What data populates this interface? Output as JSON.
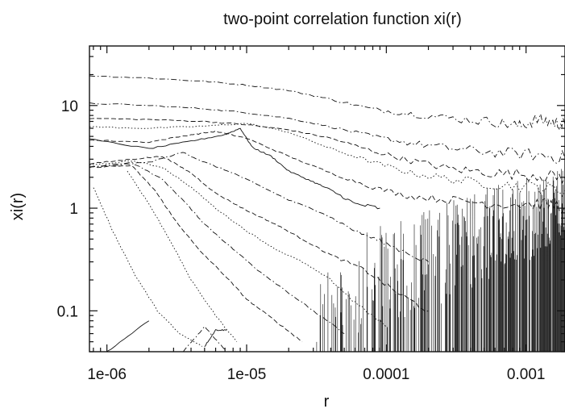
{
  "chart_data": {
    "type": "line",
    "title": "two-point correlation function xi(r)",
    "xlabel": "r",
    "ylabel": "xi(r)",
    "xscale": "log",
    "yscale": "log",
    "xlim": [
      7.5e-07,
      0.0019
    ],
    "ylim": [
      0.04,
      38
    ],
    "grid": false,
    "legend": "none",
    "x_ticks": [
      {
        "value": 1e-06,
        "label": "1e-06"
      },
      {
        "value": 1e-05,
        "label": "1e-05"
      },
      {
        "value": 0.0001,
        "label": "0.0001"
      },
      {
        "value": 0.001,
        "label": "0.001"
      }
    ],
    "y_ticks": [
      {
        "value": 0.1,
        "label": "0.1"
      },
      {
        "value": 1,
        "label": "1"
      },
      {
        "value": 10,
        "label": "10"
      }
    ],
    "series": [
      {
        "style": "dashdot",
        "color": "#111111",
        "x": [
          7.5e-07,
          2e-06,
          5e-06,
          1e-05,
          2e-05,
          4e-05,
          8e-05,
          0.00015,
          0.0003,
          0.0006,
          0.0009,
          0.0012,
          0.0016,
          0.0019
        ],
        "y": [
          19.5,
          18.5,
          17.2,
          15.8,
          14,
          11.5,
          9.2,
          8.3,
          7.5,
          6.9,
          6.3,
          7.3,
          6.8,
          6.5
        ]
      },
      {
        "style": "dashdot",
        "color": "#111111",
        "x": [
          7.5e-07,
          2e-06,
          5e-06,
          1e-05,
          2e-05,
          4e-05,
          8e-05,
          0.00015,
          0.0003,
          0.0006,
          0.0012,
          0.0019
        ],
        "y": [
          10.5,
          10,
          9.3,
          8.5,
          7.5,
          6.2,
          5,
          4.3,
          3.8,
          3.5,
          3.3,
          3.1
        ]
      },
      {
        "style": "dashed",
        "color": "#111111",
        "x": [
          7.5e-07,
          2e-06,
          5e-06,
          1e-05,
          2e-05,
          4e-05,
          8e-05,
          0.00015,
          0.0003,
          0.0006,
          0.0012,
          0.0019
        ],
        "y": [
          7.5,
          7.3,
          7,
          6.5,
          5.8,
          4.8,
          3.6,
          2.9,
          2.4,
          2.2,
          2.1,
          2
        ]
      },
      {
        "style": "dotted",
        "color": "#111111",
        "x": [
          7.5e-07,
          2e-06,
          5e-06,
          1e-05,
          2e-05,
          4e-05,
          8e-05,
          0.00015,
          0.0003,
          0.0006,
          0.0012,
          0.0019
        ],
        "y": [
          6.2,
          6,
          6.3,
          6.7,
          5.5,
          3.8,
          2.8,
          2.2,
          1.9,
          1.7,
          1.6,
          1.5
        ]
      },
      {
        "style": "dashed",
        "color": "#111111",
        "x": [
          7.5e-07,
          2e-06,
          4e-06,
          6e-06,
          1e-05,
          2e-05,
          4e-05,
          8e-05,
          0.00015,
          0.0003,
          0.0006,
          0.0012,
          0.0019
        ],
        "y": [
          4.6,
          4.4,
          5.2,
          5.6,
          4.8,
          3.2,
          2.2,
          1.6,
          1.3,
          1.2,
          1.1,
          1.1,
          1.05
        ]
      },
      {
        "style": "solid",
        "color": "#111111",
        "x": [
          7.5e-07,
          2e-06,
          4e-06,
          7e-06,
          9e-06,
          1.1e-05,
          1.5e-05,
          2e-05,
          3e-05,
          4e-05,
          6e-05,
          9e-05
        ],
        "y": [
          4.7,
          3.8,
          4.5,
          5.2,
          6,
          3.9,
          3.2,
          2.3,
          1.8,
          1.5,
          1.1,
          1
        ]
      },
      {
        "style": "dashdot",
        "color": "#111111",
        "x": [
          7.5e-07,
          2e-06,
          3.5e-06,
          5e-06,
          8e-06,
          1.3e-05,
          2e-05,
          3.5e-05,
          6e-05,
          0.0001,
          0.0002
        ],
        "y": [
          2.5,
          2.8,
          3.5,
          2.8,
          2.2,
          1.6,
          1.2,
          0.9,
          0.6,
          0.45,
          0.3
        ]
      },
      {
        "style": "dashed",
        "color": "#111111",
        "x": [
          7.5e-07,
          1.5e-06,
          2.5e-06,
          4e-06,
          6e-06,
          1e-05,
          1.6e-05,
          2.5e-05,
          4e-05,
          7e-05,
          0.00012,
          0.0002
        ],
        "y": [
          2.7,
          3,
          3.2,
          2.2,
          1.4,
          0.95,
          0.7,
          0.5,
          0.35,
          0.25,
          0.15,
          0.1
        ]
      },
      {
        "style": "dotted",
        "color": "#111111",
        "x": [
          7.5e-07,
          1.5e-06,
          2.5e-06,
          4e-06,
          6e-06,
          1e-05,
          1.6e-05,
          2.5e-05,
          4e-05,
          6e-05,
          0.0001
        ],
        "y": [
          2.6,
          2.9,
          2.5,
          1.6,
          1,
          0.6,
          0.4,
          0.3,
          0.2,
          0.12,
          0.07
        ]
      },
      {
        "style": "dashdot",
        "color": "#111111",
        "x": [
          7.5e-07,
          1.5e-06,
          2.5e-06,
          3.5e-06,
          5e-06,
          8e-06,
          1.2e-05,
          2e-05,
          3e-05,
          5e-05
        ],
        "y": [
          2.5,
          2.8,
          1.9,
          1.2,
          0.7,
          0.4,
          0.25,
          0.15,
          0.1,
          0.06
        ]
      },
      {
        "style": "dashed",
        "color": "#111111",
        "x": [
          7.5e-07,
          1.5e-06,
          2.2e-06,
          3e-06,
          4.5e-06,
          7e-06,
          1e-05,
          1.6e-05,
          2.5e-05
        ],
        "y": [
          2.5,
          2.6,
          1.5,
          0.8,
          0.4,
          0.22,
          0.13,
          0.08,
          0.05
        ]
      },
      {
        "style": "dotted",
        "color": "#111111",
        "x": [
          1.4e-06,
          2e-06,
          2.8e-06,
          4e-06,
          6e-06,
          8.5e-06
        ],
        "y": [
          2.3,
          1.1,
          0.5,
          0.2,
          0.09,
          0.05
        ]
      },
      {
        "style": "dotted",
        "color": "#111111",
        "x": [
          8e-07,
          1.1e-06,
          1.6e-06,
          2.3e-06,
          3.3e-06,
          4.8e-06
        ],
        "y": [
          1.6,
          0.6,
          0.22,
          0.1,
          0.06,
          0.045
        ]
      },
      {
        "style": "dashdot",
        "color": "#111111",
        "x": [
          3.5e-06,
          5e-06,
          7e-06
        ],
        "y": [
          0.04,
          0.07,
          0.042
        ]
      },
      {
        "style": "solid",
        "color": "#111111",
        "x": [
          5e-06,
          6e-06,
          7.2e-06
        ],
        "y": [
          0.045,
          0.065,
          0.065
        ]
      },
      {
        "style": "solid",
        "color": "#111111",
        "x": [
          1e-06,
          2e-06
        ],
        "y": [
          0.04,
          0.08
        ]
      }
    ],
    "noise_band": {
      "x_start": 3e-05,
      "x_end": 0.0019,
      "y_low": 0.04,
      "y_high": 2.5
    }
  }
}
